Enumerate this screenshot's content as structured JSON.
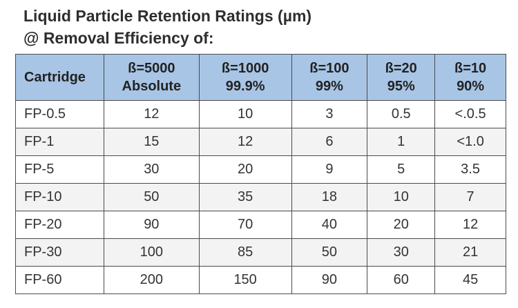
{
  "title": {
    "line1": "Liquid Particle Retention Ratings (µm)",
    "line2": "@ Removal Efficiency of:"
  },
  "table": {
    "header": [
      [
        "Cartridge"
      ],
      [
        "ß=5000",
        "Absolute"
      ],
      [
        "ß=1000",
        "99.9%"
      ],
      [
        "ß=100",
        "99%"
      ],
      [
        "ß=20",
        "95%"
      ],
      [
        "ß=10",
        "90%"
      ]
    ],
    "rows": [
      [
        "FP-0.5",
        "12",
        "10",
        "3",
        "0.5",
        "<.0.5"
      ],
      [
        "FP-1",
        "15",
        "12",
        "6",
        "1",
        "<1.0"
      ],
      [
        "FP-5",
        "30",
        "20",
        "9",
        "5",
        "3.5"
      ],
      [
        "FP-10",
        "50",
        "35",
        "18",
        "10",
        "7"
      ],
      [
        "FP-20",
        "90",
        "70",
        "40",
        "20",
        "12"
      ],
      [
        "FP-30",
        "100",
        "85",
        "50",
        "30",
        "21"
      ],
      [
        "FP-60",
        "200",
        "150",
        "90",
        "60",
        "45"
      ]
    ]
  }
}
